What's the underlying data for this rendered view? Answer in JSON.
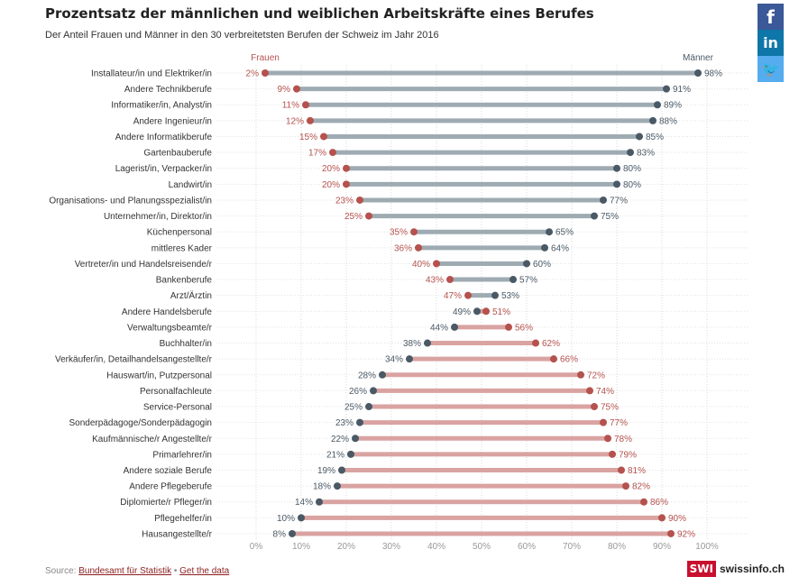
{
  "header": {
    "title": "Prozentsatz der männlichen und weiblichen Arbeitskräfte eines Berufes",
    "subtitle": "Der Anteil Frauen und Männer in den 30 verbreitetsten Berufen der Schweiz im Jahr 2016"
  },
  "social": {
    "facebook": "f",
    "linkedin": "in",
    "twitter": "🐦"
  },
  "footer": {
    "source_prefix": "Source:",
    "source_link": "Bundesamt für Statistik",
    "separator": "•",
    "data_link": "Get the data"
  },
  "brand": {
    "logo": "SWI",
    "name": "swissinfo.ch"
  },
  "colors": {
    "women": "#b5524d",
    "men": "#4a5966",
    "bar_men": "#9eabb2",
    "bar_women": "#d9a3a1"
  },
  "chart_data": {
    "type": "dumbbell",
    "title": "Prozentsatz der männlichen und weiblichen Arbeitskräfte eines Berufes",
    "subtitle": "Der Anteil Frauen und Männer in den 30 verbreitetsten Berufen der Schweiz im Jahr 2016",
    "series_labels": {
      "women": "Frauen",
      "men": "Männer"
    },
    "xlim": [
      0,
      100
    ],
    "x_ticks": [
      "0%",
      "10%",
      "20%",
      "30%",
      "40%",
      "50%",
      "60%",
      "70%",
      "80%",
      "90%",
      "100%"
    ],
    "grid": true,
    "categories": [
      "Installateur/in und Elektriker/in",
      "Andere Technikberufe",
      "Informatiker/in, Analyst/in",
      "Andere Ingenieur/in",
      "Andere Informatikberufe",
      "Gartenbauberufe",
      "Lagerist/in, Verpacker/in",
      "Landwirt/in",
      "Organisations- und Planungsspezialist/in",
      "Unternehmer/in, Direktor/in",
      "Küchenpersonal",
      "mittleres Kader",
      "Vertreter/in und Handelsreisende/r",
      "Bankenberufe",
      "Arzt/Ärztin",
      "Andere Handelsberufe",
      "Verwaltungsbeamte/r",
      "Buchhalter/in",
      "Verkäufer/in, Detailhandelsangestellte/r",
      "Hauswart/in, Putzpersonal",
      "Personalfachleute",
      "Service-Personal",
      "Sonderpädagoge/Sonderpädagogin",
      "Kaufmännische/r Angestellte/r",
      "Primarlehrer/in",
      "Andere soziale Berufe",
      "Andere Pflegeberufe",
      "Diplomierte/r Pfleger/in",
      "Pflegehelfer/in",
      "Hausangestellte/r"
    ],
    "women": [
      2,
      9,
      11,
      12,
      15,
      17,
      20,
      20,
      23,
      25,
      35,
      36,
      40,
      43,
      47,
      51,
      56,
      62,
      66,
      72,
      74,
      75,
      77,
      78,
      79,
      81,
      82,
      86,
      90,
      92
    ],
    "men": [
      98,
      91,
      89,
      88,
      85,
      83,
      80,
      80,
      77,
      75,
      65,
      64,
      60,
      57,
      53,
      49,
      44,
      38,
      34,
      28,
      26,
      25,
      23,
      22,
      21,
      19,
      18,
      14,
      10,
      8
    ],
    "women_labels": [
      "2%",
      "9%",
      "11%",
      "12%",
      "15%",
      "17%",
      "20%",
      "20%",
      "23%",
      "25%",
      "35%",
      "36%",
      "40%",
      "43%",
      "47%",
      "51%",
      "56%",
      "62%",
      "66%",
      "72%",
      "74%",
      "75%",
      "77%",
      "78%",
      "79%",
      "81%",
      "82%",
      "86%",
      "90%",
      "92%"
    ],
    "men_labels": [
      "98%",
      "91%",
      "89%",
      "88%",
      "85%",
      "83%",
      "80%",
      "80%",
      "77%",
      "75%",
      "65%",
      "64%",
      "60%",
      "57%",
      "53%",
      "49%",
      "44%",
      "38%",
      "34%",
      "28%",
      "26%",
      "25%",
      "23%",
      "22%",
      "21%",
      "19%",
      "18%",
      "14%",
      "10%",
      "8%"
    ]
  }
}
